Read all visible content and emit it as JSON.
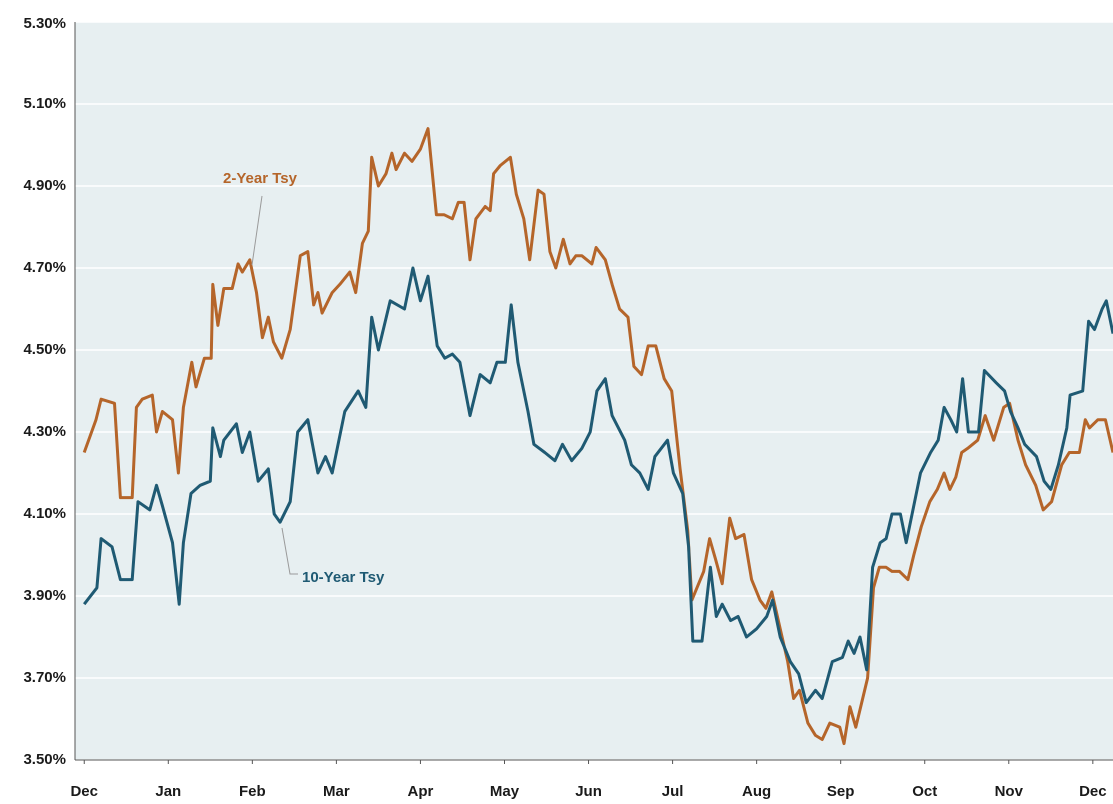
{
  "chart_data": {
    "type": "line",
    "xlim": [
      -0.11,
      12.24
    ],
    "xticks": [
      {
        "value": 0,
        "label": "Dec"
      },
      {
        "value": 1,
        "label": "Jan"
      },
      {
        "value": 2,
        "label": "Feb"
      },
      {
        "value": 3,
        "label": "Mar"
      },
      {
        "value": 4,
        "label": "Apr"
      },
      {
        "value": 5,
        "label": "May"
      },
      {
        "value": 6,
        "label": "Jun"
      },
      {
        "value": 7,
        "label": "Jul"
      },
      {
        "value": 8,
        "label": "Aug"
      },
      {
        "value": 9,
        "label": "Sep"
      },
      {
        "value": 10,
        "label": "Oct"
      },
      {
        "value": 11,
        "label": "Nov"
      },
      {
        "value": 12,
        "label": "Dec"
      }
    ],
    "ylim": [
      3.5,
      5.3
    ],
    "yticks": [
      {
        "value": 3.5,
        "label": "3.50%"
      },
      {
        "value": 3.7,
        "label": "3.70%"
      },
      {
        "value": 3.9,
        "label": "3.90%"
      },
      {
        "value": 4.1,
        "label": "4.10%"
      },
      {
        "value": 4.3,
        "label": "4.30%"
      },
      {
        "value": 4.5,
        "label": "4.50%"
      },
      {
        "value": 4.7,
        "label": "4.70%"
      },
      {
        "value": 4.9,
        "label": "4.90%"
      },
      {
        "value": 5.1,
        "label": "5.10%"
      },
      {
        "value": 5.3,
        "label": "5.30%"
      }
    ],
    "grid": true,
    "series": [
      {
        "name": "2-Year Tsy",
        "color": "#b5652a",
        "x": [
          0,
          0.14,
          0.2,
          0.36,
          0.43,
          0.57,
          0.62,
          0.69,
          0.81,
          0.86,
          0.93,
          1.05,
          1.12,
          1.18,
          1.28,
          1.33,
          1.43,
          1.51,
          1.53,
          1.59,
          1.66,
          1.76,
          1.83,
          1.88,
          1.97,
          2.05,
          2.12,
          2.19,
          2.25,
          2.35,
          2.45,
          2.57,
          2.66,
          2.73,
          2.78,
          2.83,
          2.95,
          3.04,
          3.16,
          3.23,
          3.31,
          3.38,
          3.42,
          3.5,
          3.59,
          3.66,
          3.71,
          3.81,
          3.9,
          4.0,
          4.09,
          4.19,
          4.28,
          4.38,
          4.45,
          4.52,
          4.59,
          4.66,
          4.77,
          4.83,
          4.87,
          4.95,
          5.07,
          5.14,
          5.23,
          5.3,
          5.4,
          5.47,
          5.54,
          5.61,
          5.7,
          5.78,
          5.85,
          5.92,
          6.04,
          6.09,
          6.2,
          6.28,
          6.37,
          6.47,
          6.54,
          6.63,
          6.71,
          6.8,
          6.9,
          6.99,
          7.09,
          7.18,
          7.23,
          7.37,
          7.44,
          7.51,
          7.59,
          7.68,
          7.75,
          7.85,
          7.94,
          8.04,
          8.11,
          8.18,
          8.28,
          8.37,
          8.44,
          8.51,
          8.61,
          8.7,
          8.78,
          8.87,
          8.99,
          9.04,
          9.11,
          9.18,
          9.25,
          9.32,
          9.39,
          9.46,
          9.54,
          9.61,
          9.7,
          9.8,
          9.87,
          9.96,
          10.06,
          10.15,
          10.23,
          10.3,
          10.37,
          10.44,
          10.51,
          10.63,
          10.72,
          10.82,
          10.94,
          11.01,
          11.11,
          11.2,
          11.32,
          11.41,
          11.51,
          11.63,
          11.72,
          11.84,
          11.91,
          11.96,
          12.06,
          12.15,
          12.24
        ],
        "values": [
          4.25,
          4.33,
          4.38,
          4.37,
          4.14,
          4.14,
          4.36,
          4.38,
          4.39,
          4.3,
          4.35,
          4.33,
          4.2,
          4.36,
          4.47,
          4.41,
          4.48,
          4.48,
          4.66,
          4.56,
          4.65,
          4.65,
          4.71,
          4.69,
          4.72,
          4.64,
          4.53,
          4.58,
          4.52,
          4.48,
          4.55,
          4.73,
          4.74,
          4.61,
          4.64,
          4.59,
          4.64,
          4.66,
          4.69,
          4.64,
          4.76,
          4.79,
          4.97,
          4.9,
          4.93,
          4.98,
          4.94,
          4.98,
          4.96,
          4.99,
          5.04,
          4.83,
          4.83,
          4.82,
          4.86,
          4.86,
          4.72,
          4.82,
          4.85,
          4.84,
          4.93,
          4.95,
          4.97,
          4.88,
          4.82,
          4.72,
          4.89,
          4.88,
          4.74,
          4.7,
          4.77,
          4.71,
          4.73,
          4.73,
          4.71,
          4.75,
          4.72,
          4.66,
          4.6,
          4.58,
          4.46,
          4.44,
          4.51,
          4.51,
          4.43,
          4.4,
          4.21,
          4.06,
          3.89,
          3.96,
          4.04,
          3.99,
          3.93,
          4.09,
          4.04,
          4.05,
          3.94,
          3.89,
          3.87,
          3.91,
          3.82,
          3.74,
          3.65,
          3.67,
          3.59,
          3.56,
          3.55,
          3.59,
          3.58,
          3.54,
          3.63,
          3.58,
          3.64,
          3.7,
          3.92,
          3.97,
          3.97,
          3.96,
          3.96,
          3.94,
          4.0,
          4.07,
          4.13,
          4.16,
          4.2,
          4.16,
          4.19,
          4.25,
          4.26,
          4.28,
          4.34,
          4.28,
          4.36,
          4.37,
          4.28,
          4.22,
          4.17,
          4.11,
          4.13,
          4.22,
          4.25,
          4.25,
          4.33,
          4.31,
          4.33,
          4.33,
          4.25
        ]
      },
      {
        "name": "10-Year Tsy",
        "color": "#1f5a73",
        "x": [
          0,
          0.15,
          0.2,
          0.33,
          0.43,
          0.57,
          0.64,
          0.78,
          0.86,
          0.93,
          1.05,
          1.13,
          1.18,
          1.27,
          1.38,
          1.5,
          1.53,
          1.62,
          1.66,
          1.81,
          1.88,
          1.97,
          2.07,
          2.19,
          2.26,
          2.33,
          2.45,
          2.54,
          2.66,
          2.78,
          2.87,
          2.95,
          3.1,
          3.26,
          3.35,
          3.42,
          3.5,
          3.64,
          3.81,
          3.91,
          4.0,
          4.09,
          4.2,
          4.29,
          4.38,
          4.47,
          4.59,
          4.71,
          4.83,
          4.91,
          5.01,
          5.08,
          5.16,
          5.28,
          5.35,
          5.48,
          5.6,
          5.69,
          5.8,
          5.92,
          6.02,
          6.1,
          6.2,
          6.28,
          6.43,
          6.51,
          6.61,
          6.71,
          6.79,
          6.94,
          7.01,
          7.12,
          7.19,
          7.24,
          7.35,
          7.45,
          7.52,
          7.59,
          7.69,
          7.78,
          7.88,
          8.0,
          8.12,
          8.19,
          8.28,
          8.4,
          8.5,
          8.59,
          8.7,
          8.78,
          8.9,
          9.02,
          9.09,
          9.16,
          9.23,
          9.31,
          9.38,
          9.47,
          9.54,
          9.61,
          9.71,
          9.78,
          9.85,
          9.95,
          10.07,
          10.16,
          10.23,
          10.31,
          10.38,
          10.45,
          10.52,
          10.64,
          10.71,
          10.85,
          10.95,
          11.02,
          11.11,
          11.19,
          11.33,
          11.42,
          11.5,
          11.59,
          11.69,
          11.73,
          11.88,
          11.95,
          12.02,
          12.11,
          12.16,
          12.24
        ],
        "values": [
          3.88,
          3.92,
          4.04,
          4.02,
          3.94,
          3.94,
          4.13,
          4.11,
          4.17,
          4.12,
          4.03,
          3.88,
          4.03,
          4.15,
          4.17,
          4.18,
          4.31,
          4.24,
          4.28,
          4.32,
          4.25,
          4.3,
          4.18,
          4.21,
          4.1,
          4.08,
          4.13,
          4.3,
          4.33,
          4.2,
          4.24,
          4.2,
          4.35,
          4.4,
          4.36,
          4.58,
          4.5,
          4.62,
          4.6,
          4.7,
          4.62,
          4.68,
          4.51,
          4.48,
          4.49,
          4.47,
          4.34,
          4.44,
          4.42,
          4.47,
          4.47,
          4.61,
          4.47,
          4.35,
          4.27,
          4.25,
          4.23,
          4.27,
          4.23,
          4.26,
          4.3,
          4.4,
          4.43,
          4.34,
          4.28,
          4.22,
          4.2,
          4.16,
          4.24,
          4.28,
          4.2,
          4.15,
          4.02,
          3.79,
          3.79,
          3.97,
          3.85,
          3.88,
          3.84,
          3.85,
          3.8,
          3.82,
          3.85,
          3.89,
          3.8,
          3.74,
          3.71,
          3.64,
          3.67,
          3.65,
          3.74,
          3.75,
          3.79,
          3.76,
          3.8,
          3.72,
          3.97,
          4.03,
          4.04,
          4.1,
          4.1,
          4.03,
          4.1,
          4.2,
          4.25,
          4.28,
          4.36,
          4.33,
          4.3,
          4.43,
          4.3,
          4.3,
          4.45,
          4.42,
          4.4,
          4.35,
          4.31,
          4.27,
          4.24,
          4.18,
          4.16,
          4.22,
          4.31,
          4.39,
          4.4,
          4.57,
          4.55,
          4.6,
          4.62,
          4.54
        ]
      }
    ]
  }
}
